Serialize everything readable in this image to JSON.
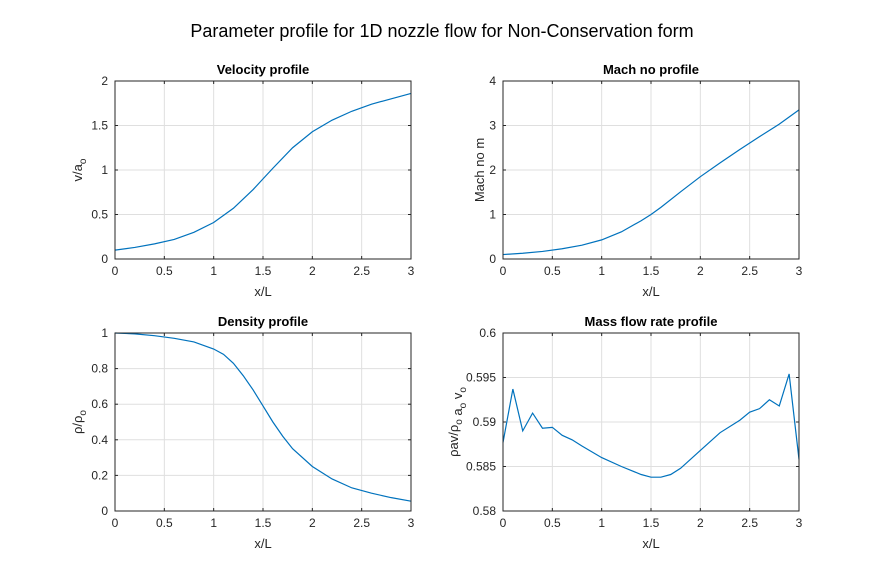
{
  "figure": {
    "suptitle": "Parameter profile for 1D nozzle flow for Non-Conservation form",
    "line_color": "#0072BD",
    "grid_color": "#dfdfdf",
    "grid": true
  },
  "chart_data": [
    {
      "type": "line",
      "title": "Velocity profile",
      "xlabel": "x/L",
      "ylabel": "v/a",
      "ylabel_sub": "o",
      "xlim": [
        0,
        3
      ],
      "ylim": [
        0,
        2
      ],
      "xticks": [
        0,
        0.5,
        1,
        1.5,
        2,
        2.5,
        3
      ],
      "yticks": [
        0,
        0.5,
        1,
        1.5,
        2
      ],
      "xtick_labels": [
        "0",
        "0.5",
        "1",
        "1.5",
        "2",
        "2.5",
        "3"
      ],
      "ytick_labels": [
        "0",
        "0.5",
        "1",
        "1.5",
        "2"
      ],
      "x": [
        0,
        0.2,
        0.4,
        0.6,
        0.8,
        1.0,
        1.2,
        1.4,
        1.5,
        1.6,
        1.8,
        2.0,
        2.2,
        2.4,
        2.6,
        2.8,
        3.0
      ],
      "y": [
        0.1,
        0.13,
        0.17,
        0.22,
        0.3,
        0.41,
        0.57,
        0.78,
        0.9,
        1.02,
        1.25,
        1.43,
        1.56,
        1.66,
        1.74,
        1.8,
        1.86
      ]
    },
    {
      "type": "line",
      "title": "Mach no profile",
      "xlabel": "x/L",
      "ylabel": "Mach no m",
      "ylabel_sub": "",
      "xlim": [
        0,
        3
      ],
      "ylim": [
        0,
        4
      ],
      "xticks": [
        0,
        0.5,
        1,
        1.5,
        2,
        2.5,
        3
      ],
      "yticks": [
        0,
        1,
        2,
        3,
        4
      ],
      "xtick_labels": [
        "0",
        "0.5",
        "1",
        "1.5",
        "2",
        "2.5",
        "3"
      ],
      "ytick_labels": [
        "0",
        "1",
        "2",
        "3",
        "4"
      ],
      "x": [
        0,
        0.2,
        0.4,
        0.6,
        0.8,
        1.0,
        1.2,
        1.4,
        1.5,
        1.6,
        1.8,
        2.0,
        2.2,
        2.4,
        2.6,
        2.8,
        3.0
      ],
      "y": [
        0.1,
        0.13,
        0.17,
        0.23,
        0.31,
        0.43,
        0.61,
        0.86,
        1.0,
        1.16,
        1.51,
        1.85,
        2.16,
        2.46,
        2.75,
        3.03,
        3.35
      ]
    },
    {
      "type": "line",
      "title": "Density profile",
      "xlabel": "x/L",
      "ylabel": "ρ/ρ",
      "ylabel_sub": "o",
      "xlim": [
        0,
        3
      ],
      "ylim": [
        0,
        1
      ],
      "xticks": [
        0,
        0.5,
        1,
        1.5,
        2,
        2.5,
        3
      ],
      "yticks": [
        0,
        0.2,
        0.4,
        0.6,
        0.8,
        1
      ],
      "xtick_labels": [
        "0",
        "0.5",
        "1",
        "1.5",
        "2",
        "2.5",
        "3"
      ],
      "ytick_labels": [
        "0",
        "0.2",
        "0.4",
        "0.6",
        "0.8",
        "1"
      ],
      "x": [
        0,
        0.2,
        0.4,
        0.6,
        0.8,
        1.0,
        1.1,
        1.2,
        1.3,
        1.4,
        1.5,
        1.6,
        1.7,
        1.8,
        2.0,
        2.2,
        2.4,
        2.6,
        2.8,
        3.0
      ],
      "y": [
        1.0,
        0.995,
        0.985,
        0.97,
        0.95,
        0.91,
        0.88,
        0.83,
        0.76,
        0.68,
        0.59,
        0.5,
        0.42,
        0.35,
        0.25,
        0.18,
        0.13,
        0.1,
        0.075,
        0.055
      ]
    },
    {
      "type": "line",
      "title": "Mass flow rate profile",
      "xlabel": "x/L",
      "ylabel": "ρav/ρ",
      "ylabel_sub": "o",
      "ylabel_mid": "a",
      "ylabel_mid_sub": "o",
      "ylabel_end": "v",
      "ylabel_end_sub": "o",
      "xlim": [
        0,
        3
      ],
      "ylim": [
        0.58,
        0.6
      ],
      "xticks": [
        0,
        0.5,
        1,
        1.5,
        2,
        2.5,
        3
      ],
      "yticks": [
        0.58,
        0.585,
        0.59,
        0.595,
        0.6
      ],
      "xtick_labels": [
        "0",
        "0.5",
        "1",
        "1.5",
        "2",
        "2.5",
        "3"
      ],
      "ytick_labels": [
        "0.58",
        "0.585",
        "0.59",
        "0.595",
        "0.6"
      ],
      "x": [
        0,
        0.1,
        0.2,
        0.3,
        0.4,
        0.5,
        0.6,
        0.7,
        0.8,
        1.0,
        1.2,
        1.4,
        1.5,
        1.6,
        1.7,
        1.8,
        2.0,
        2.2,
        2.4,
        2.5,
        2.6,
        2.7,
        2.8,
        2.9,
        3.0
      ],
      "y": [
        0.5877,
        0.5937,
        0.589,
        0.591,
        0.5893,
        0.5894,
        0.5885,
        0.588,
        0.5873,
        0.586,
        0.585,
        0.5841,
        0.5838,
        0.5838,
        0.5841,
        0.5848,
        0.5868,
        0.5888,
        0.5902,
        0.5911,
        0.5915,
        0.5925,
        0.5918,
        0.5954,
        0.5858
      ]
    }
  ]
}
